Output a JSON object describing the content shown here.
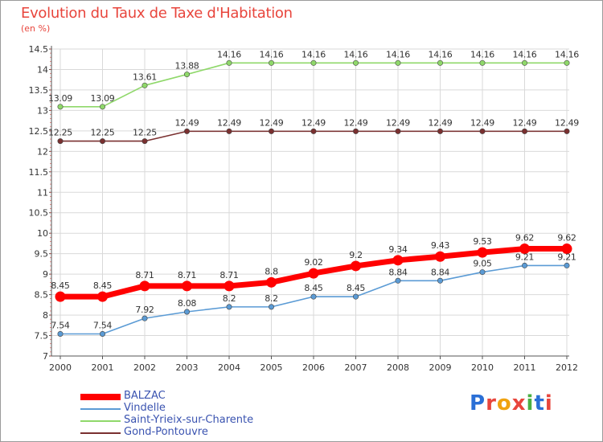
{
  "title": "Evolution du Taux de Taxe d'Habitation",
  "subtitle": "(en %)",
  "logo": {
    "text": "Proxiti",
    "colors": [
      "#2a6fd6",
      "#e8453c",
      "#f0a20f",
      "#e8453c",
      "#4bb043",
      "#2a6fd6",
      "#e8453c"
    ]
  },
  "colors": {
    "title": "#e8453c",
    "grid": "#d9d9d9",
    "legend_text": "#3a53b0"
  },
  "chart_data": {
    "type": "line",
    "title": "Evolution du Taux de Taxe d'Habitation",
    "subtitle": "(en %)",
    "x": [
      "2000",
      "2001",
      "2002",
      "2003",
      "2004",
      "2005",
      "2006",
      "2007",
      "2008",
      "2009",
      "2010",
      "2011",
      "2012"
    ],
    "ylim": [
      7,
      14.5
    ],
    "yticks": [
      "7",
      "7.5",
      "8",
      "8.5",
      "9",
      "9.5",
      "10",
      "10.5",
      "11",
      "11.5",
      "12",
      "12.5",
      "13",
      "13.5",
      "14",
      "14.5"
    ],
    "grid": true,
    "legend_position": "bottom-left",
    "series": [
      {
        "name": "BALZAC",
        "color": "#ff0000",
        "emphasis": true,
        "values": [
          8.45,
          8.45,
          8.71,
          8.71,
          8.71,
          8.8,
          9.02,
          9.2,
          9.34,
          9.43,
          9.53,
          9.62,
          9.62
        ],
        "labels": [
          "8.45",
          "8.45",
          "8.71",
          "8.71",
          "8.71",
          "8.8",
          "9.02",
          "9.2",
          "9.34",
          "9.43",
          "9.53",
          "9.62",
          "9.62"
        ]
      },
      {
        "name": "Vindelle",
        "color": "#5b9bd5",
        "values": [
          7.54,
          7.54,
          7.92,
          8.08,
          8.2,
          8.2,
          8.45,
          8.45,
          8.84,
          8.84,
          9.05,
          9.21,
          9.21
        ],
        "labels": [
          "7.54",
          "7.54",
          "7.92",
          "8.08",
          "8.2",
          "8.2",
          "8.45",
          "8.45",
          "8.84",
          "8.84",
          "9.05",
          "9.21",
          "9.21"
        ]
      },
      {
        "name": "Saint-Yrieix-sur-Charente",
        "color": "#8fd86a",
        "values": [
          13.09,
          13.09,
          13.61,
          13.88,
          14.16,
          14.16,
          14.16,
          14.16,
          14.16,
          14.16,
          14.16,
          14.16,
          14.16
        ],
        "labels": [
          "13.09",
          "13.09",
          "13.61",
          "13.88",
          "14.16",
          "14.16",
          "14.16",
          "14.16",
          "14.16",
          "14.16",
          "14.16",
          "14.16",
          "14.16"
        ]
      },
      {
        "name": "Gond-Pontouvre",
        "color": "#7a3030",
        "values": [
          12.25,
          12.25,
          12.25,
          12.49,
          12.49,
          12.49,
          12.49,
          12.49,
          12.49,
          12.49,
          12.49,
          12.49,
          12.49
        ],
        "labels": [
          "12.25",
          "12.25",
          "12.25",
          "12.49",
          "12.49",
          "12.49",
          "12.49",
          "12.49",
          "12.49",
          "12.49",
          "12.49",
          "12.49",
          "12.49"
        ]
      }
    ]
  }
}
